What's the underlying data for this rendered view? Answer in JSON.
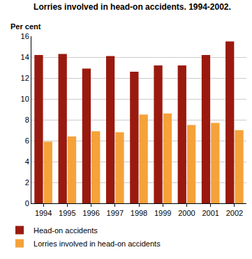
{
  "chart_data": {
    "type": "bar",
    "title": "Lorries involved in head-on accidents. 1994-2002.",
    "y_label": "Per cent",
    "categories": [
      "1994",
      "1995",
      "1996",
      "1997",
      "1998",
      "1999",
      "2000",
      "2001",
      "2002"
    ],
    "series": [
      {
        "name": "Head-on accidents",
        "color": "#9a1a0f",
        "values": [
          14.2,
          14.3,
          12.9,
          14.1,
          12.6,
          13.2,
          13.2,
          14.2,
          15.5
        ]
      },
      {
        "name": "Lorries involved in head-on accidents",
        "color": "#f5a23a",
        "values": [
          5.9,
          6.4,
          6.9,
          6.8,
          8.5,
          8.6,
          7.5,
          7.7,
          7.0
        ]
      }
    ],
    "ylim": [
      0,
      16
    ],
    "yticks": [
      0,
      2,
      4,
      6,
      8,
      10,
      12,
      14,
      16
    ],
    "grid": true,
    "legend": "bottom"
  }
}
